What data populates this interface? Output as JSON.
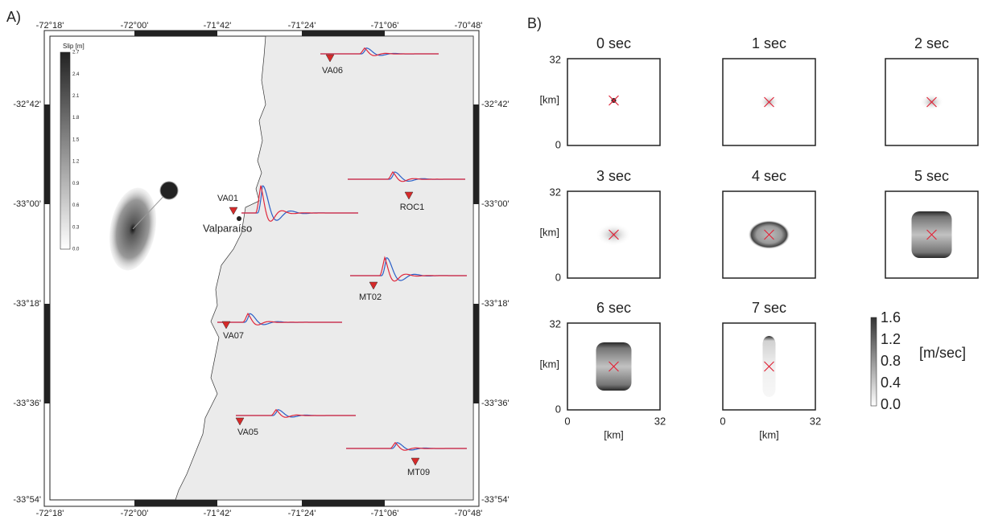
{
  "figure": {
    "a": {
      "label": "A)",
      "lon_ticks": [
        "-72°18'",
        "-72°00'",
        "-71°42'",
        "-71°24'",
        "-71°06'",
        "-70°48'"
      ],
      "lat_ticks": [
        "-32°42'",
        "-33°00'",
        "-33°18'",
        "-33°36'",
        "-33°54'"
      ],
      "colorbar": {
        "title": "Slip [m]",
        "ticks": [
          "2.7",
          "2.4",
          "2.1",
          "1.8",
          "1.5",
          "1.2",
          "0.9",
          "0.6",
          "0.3",
          "0.0"
        ]
      },
      "stations": [
        "VA06",
        "ROC1",
        "VA01",
        "MT02",
        "VA07",
        "VA05",
        "MT09"
      ],
      "city": "Valparaíso"
    },
    "b": {
      "label": "B)",
      "snapshots": [
        "0 sec",
        "1 sec",
        "2 sec",
        "3 sec",
        "4 sec",
        "5 sec",
        "6 sec",
        "7 sec"
      ],
      "axis_max": "32",
      "axis_min": "0",
      "axis_label": "[km]",
      "colorbar": {
        "ticks": [
          "1.6",
          "1.2",
          "0.8",
          "0.4",
          "0.0"
        ],
        "unit": "[m/sec]"
      }
    }
  }
}
